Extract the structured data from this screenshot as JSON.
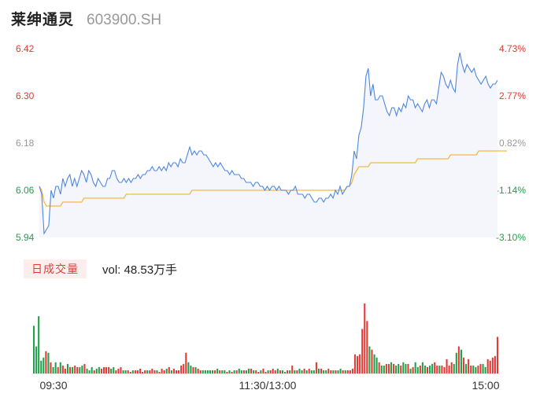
{
  "header": {
    "name": "莱绅通灵",
    "code": "603900.SH"
  },
  "volume_panel": {
    "tab_label": "日成交量",
    "vol_prefix": "vol: ",
    "vol_value": "48.53万手"
  },
  "colors": {
    "price_line": "#4f86e0",
    "avg_line": "#f5b942",
    "area_fill": "#f4f6fc",
    "up": "#e53935",
    "down": "#21a04a",
    "neutral": "#999999"
  },
  "chart_data": [
    {
      "type": "line",
      "title": "",
      "y_ticks_left": [
        "6.42",
        "6.30",
        "6.18",
        "6.06",
        "5.94"
      ],
      "y_ticks_right": [
        "4.73%",
        "2.77%",
        "0.82%",
        "-1.14%",
        "-3.10%"
      ],
      "ylim": [
        5.94,
        6.42
      ],
      "x_ticks": [
        "09:30",
        "11:30/13:00",
        "15:00"
      ],
      "series": [
        {
          "key": "price",
          "values": [
            6.07,
            6.05,
            5.95,
            5.96,
            5.97,
            6.06,
            6.04,
            6.07,
            6.07,
            6.05,
            6.09,
            6.07,
            6.09,
            6.1,
            6.07,
            6.09,
            6.07,
            6.09,
            6.11,
            6.1,
            6.08,
            6.11,
            6.1,
            6.08,
            6.07,
            6.09,
            6.08,
            6.07,
            6.07,
            6.09,
            6.09,
            6.11,
            6.11,
            6.09,
            6.08,
            6.08,
            6.09,
            6.08,
            6.09,
            6.08,
            6.09,
            6.09,
            6.1,
            6.09,
            6.1,
            6.1,
            6.11,
            6.11,
            6.12,
            6.11,
            6.11,
            6.12,
            6.11,
            6.12,
            6.11,
            6.13,
            6.12,
            6.13,
            6.13,
            6.12,
            6.14,
            6.13,
            6.13,
            6.15,
            6.17,
            6.15,
            6.16,
            6.15,
            6.16,
            6.16,
            6.15,
            6.15,
            6.14,
            6.13,
            6.12,
            6.13,
            6.12,
            6.13,
            6.12,
            6.11,
            6.11,
            6.1,
            6.11,
            6.1,
            6.1,
            6.1,
            6.09,
            6.09,
            6.08,
            6.08,
            6.08,
            6.07,
            6.08,
            6.08,
            6.07,
            6.07,
            6.06,
            6.07,
            6.06,
            6.07,
            6.07,
            6.06,
            6.07,
            6.06,
            6.06,
            6.06,
            6.05,
            6.06,
            6.06,
            6.07,
            6.05,
            6.05,
            6.05,
            6.04,
            6.05,
            6.05,
            6.04,
            6.03,
            6.03,
            6.04,
            6.04,
            6.03,
            6.04,
            6.04,
            6.05,
            6.04,
            6.06,
            6.05,
            6.07,
            6.05,
            6.06,
            6.07,
            6.07,
            6.1,
            6.16,
            6.14,
            6.2,
            6.22,
            6.27,
            6.35,
            6.37,
            6.3,
            6.33,
            6.29,
            6.29,
            6.3,
            6.3,
            6.28,
            6.26,
            6.25,
            6.27,
            6.27,
            6.25,
            6.27,
            6.26,
            6.28,
            6.27,
            6.3,
            6.29,
            6.29,
            6.27,
            6.28,
            6.27,
            6.26,
            6.28,
            6.29,
            6.27,
            6.29,
            6.29,
            6.28,
            6.32,
            6.36,
            6.35,
            6.33,
            6.32,
            6.34,
            6.32,
            6.31,
            6.38,
            6.41,
            6.38,
            6.36,
            6.38,
            6.37,
            6.36,
            6.37,
            6.35,
            6.34,
            6.33,
            6.34,
            6.35,
            6.33,
            6.32,
            6.33,
            6.33,
            6.34
          ]
        },
        {
          "key": "avg",
          "values": [
            6.07,
            6.06,
            6.03,
            6.02,
            6.02,
            6.02,
            6.02,
            6.02,
            6.02,
            6.02,
            6.03,
            6.03,
            6.03,
            6.03,
            6.03,
            6.03,
            6.03,
            6.03,
            6.03,
            6.04,
            6.04,
            6.04,
            6.04,
            6.04,
            6.04,
            6.04,
            6.04,
            6.04,
            6.04,
            6.04,
            6.04,
            6.04,
            6.04,
            6.04,
            6.04,
            6.04,
            6.04,
            6.05,
            6.05,
            6.05,
            6.05,
            6.05,
            6.05,
            6.05,
            6.05,
            6.05,
            6.05,
            6.05,
            6.05,
            6.05,
            6.05,
            6.05,
            6.05,
            6.05,
            6.05,
            6.05,
            6.05,
            6.05,
            6.05,
            6.05,
            6.05,
            6.05,
            6.05,
            6.05,
            6.05,
            6.06,
            6.06,
            6.06,
            6.06,
            6.06,
            6.06,
            6.06,
            6.06,
            6.06,
            6.06,
            6.06,
            6.06,
            6.06,
            6.06,
            6.06,
            6.06,
            6.06,
            6.06,
            6.06,
            6.06,
            6.06,
            6.06,
            6.06,
            6.06,
            6.06,
            6.06,
            6.06,
            6.06,
            6.06,
            6.06,
            6.06,
            6.06,
            6.06,
            6.06,
            6.06,
            6.06,
            6.06,
            6.06,
            6.06,
            6.06,
            6.06,
            6.06,
            6.06,
            6.06,
            6.06,
            6.06,
            6.06,
            6.06,
            6.06,
            6.06,
            6.06,
            6.06,
            6.06,
            6.06,
            6.06,
            6.06,
            6.06,
            6.06,
            6.06,
            6.06,
            6.06,
            6.06,
            6.06,
            6.06,
            6.06,
            6.06,
            6.07,
            6.07,
            6.08,
            6.1,
            6.11,
            6.12,
            6.12,
            6.12,
            6.12,
            6.12,
            6.13,
            6.13,
            6.13,
            6.13,
            6.13,
            6.13,
            6.13,
            6.13,
            6.13,
            6.13,
            6.13,
            6.13,
            6.13,
            6.13,
            6.13,
            6.13,
            6.13,
            6.13,
            6.13,
            6.13,
            6.14,
            6.14,
            6.14,
            6.14,
            6.14,
            6.14,
            6.14,
            6.14,
            6.14,
            6.14,
            6.14,
            6.14,
            6.14,
            6.14,
            6.15,
            6.15,
            6.15,
            6.15,
            6.15,
            6.15,
            6.15,
            6.15,
            6.15,
            6.15,
            6.15,
            6.15,
            6.16,
            6.16,
            6.16,
            6.16,
            6.16,
            6.16,
            6.16,
            6.16,
            6.16,
            6.16,
            6.16,
            6.16,
            6.16
          ]
        }
      ]
    },
    {
      "type": "bar",
      "title": "",
      "ylim": [
        0,
        88
      ],
      "values": [
        60,
        34,
        72,
        16,
        20,
        28,
        26,
        14,
        8,
        14,
        8,
        14,
        10,
        6,
        12,
        8,
        8,
        10,
        8,
        8,
        10,
        12,
        6,
        4,
        8,
        4,
        6,
        8,
        6,
        8,
        8,
        8,
        6,
        8,
        4,
        6,
        8,
        4,
        4,
        4,
        2,
        4,
        4,
        4,
        6,
        2,
        4,
        4,
        4,
        6,
        4,
        4,
        2,
        6,
        4,
        6,
        8,
        4,
        6,
        4,
        4,
        10,
        12,
        26,
        14,
        10,
        8,
        8,
        6,
        4,
        4,
        4,
        4,
        4,
        4,
        4,
        6,
        4,
        4,
        4,
        2,
        4,
        2,
        4,
        4,
        6,
        4,
        4,
        4,
        6,
        6,
        4,
        4,
        2,
        4,
        6,
        2,
        4,
        4,
        6,
        4,
        6,
        4,
        4,
        2,
        4,
        4,
        10,
        4,
        4,
        6,
        4,
        6,
        4,
        6,
        4,
        4,
        14,
        6,
        6,
        4,
        4,
        6,
        4,
        4,
        4,
        4,
        6,
        4,
        4,
        4,
        4,
        6,
        24,
        22,
        24,
        56,
        88,
        66,
        34,
        30,
        24,
        20,
        14,
        10,
        10,
        12,
        12,
        14,
        12,
        10,
        12,
        10,
        14,
        12,
        12,
        6,
        8,
        14,
        8,
        10,
        14,
        10,
        8,
        10,
        12,
        14,
        10,
        10,
        10,
        8,
        18,
        10,
        14,
        12,
        26,
        34,
        30,
        20,
        12,
        18,
        10,
        10,
        8,
        10,
        12,
        12,
        8,
        18,
        16,
        20,
        22,
        46
      ],
      "direction": [
        "d",
        "d",
        "d",
        "d",
        "d",
        "u",
        "d",
        "u",
        "d",
        "d",
        "u",
        "d",
        "u",
        "u",
        "d",
        "u",
        "d",
        "u",
        "u",
        "d",
        "d",
        "u",
        "d",
        "d",
        "d",
        "u",
        "d",
        "d",
        "u",
        "u",
        "u",
        "u",
        "d",
        "d",
        "u",
        "u",
        "u",
        "d",
        "d",
        "u",
        "u",
        "d",
        "u",
        "u",
        "u",
        "u",
        "u",
        "d",
        "u",
        "u",
        "u",
        "d",
        "u",
        "u",
        "u",
        "d",
        "u",
        "d",
        "u",
        "u",
        "u",
        "u",
        "u",
        "u",
        "d",
        "d",
        "u",
        "d",
        "u",
        "u",
        "d",
        "d",
        "d",
        "d",
        "d",
        "u",
        "d",
        "u",
        "d",
        "d",
        "u",
        "d",
        "u",
        "d",
        "u",
        "d",
        "d",
        "u",
        "d",
        "d",
        "u",
        "d",
        "u",
        "u",
        "d",
        "u",
        "u",
        "d",
        "u",
        "u",
        "u",
        "d",
        "u",
        "d",
        "d",
        "u",
        "d",
        "u",
        "d",
        "u",
        "d",
        "d",
        "u",
        "d",
        "u",
        "d",
        "d",
        "u",
        "d",
        "u",
        "d",
        "d",
        "u",
        "u",
        "d",
        "u",
        "d",
        "d",
        "u",
        "d",
        "u",
        "u",
        "u",
        "u",
        "u",
        "u",
        "u",
        "u",
        "u",
        "d",
        "u",
        "d",
        "d",
        "u",
        "d",
        "d",
        "u",
        "u",
        "d",
        "u",
        "d",
        "d",
        "u",
        "d",
        "d",
        "u",
        "d",
        "u",
        "d",
        "d",
        "u",
        "d",
        "d",
        "u",
        "d",
        "d",
        "u",
        "u",
        "d",
        "u",
        "u",
        "u",
        "u",
        "u",
        "d",
        "d",
        "u",
        "d",
        "u",
        "d",
        "u",
        "u",
        "d",
        "d",
        "u",
        "u",
        "d",
        "d",
        "u",
        "u",
        "u",
        "u",
        "u",
        "d"
      ]
    }
  ]
}
